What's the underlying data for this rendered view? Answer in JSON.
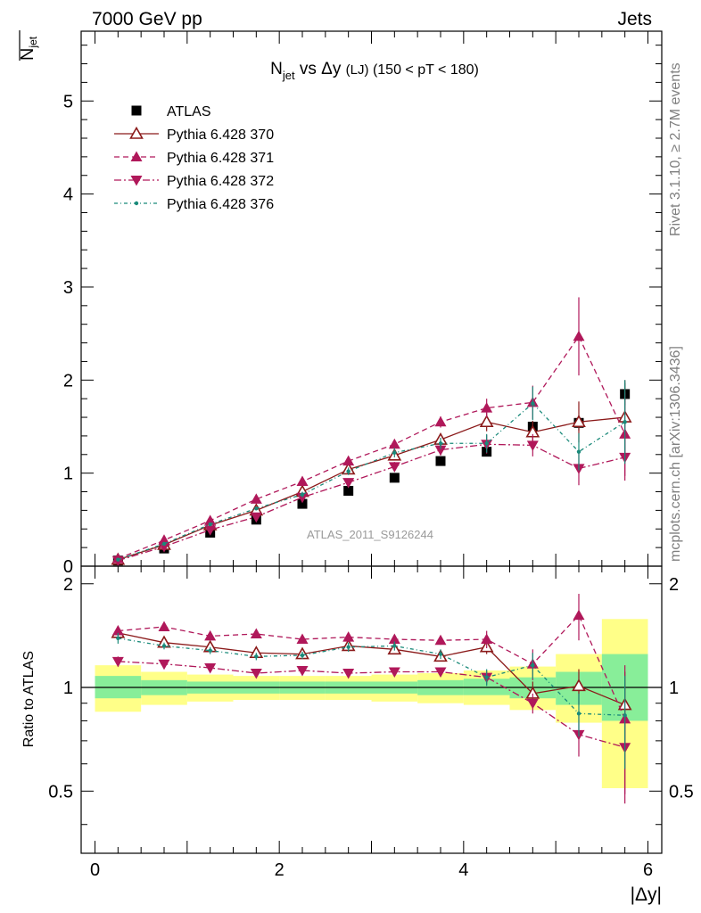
{
  "header": {
    "left": "7000 GeV pp",
    "right": "Jets"
  },
  "side_labels": {
    "rivet": "Rivet 3.1.10, ≥ 2.7M events",
    "mcplots": "mcplots.cern.ch [arXiv:1306.3436]"
  },
  "chart_data": [
    {
      "type": "scatter",
      "panel": "main",
      "title": {
        "main": "N",
        "sub": "jet",
        "mid": " vs Δy ",
        "tail_small": "(LJ)",
        "tail": " (150 < pT < 180)"
      },
      "ylabel": {
        "top": "N",
        "sub": "jet"
      },
      "watermark": "ATLAS_2011_S9126244",
      "xlim": [
        -0.15,
        6.15
      ],
      "ylim": [
        0,
        5.75
      ],
      "yticks": [
        {
          "v": 0,
          "label": "0"
        },
        {
          "v": 1,
          "label": "1"
        },
        {
          "v": 2,
          "label": "2"
        },
        {
          "v": 3,
          "label": "3"
        },
        {
          "v": 4,
          "label": "4"
        },
        {
          "v": 5,
          "label": "5"
        }
      ],
      "x": [
        0.25,
        0.75,
        1.25,
        1.75,
        2.25,
        2.75,
        3.25,
        3.75,
        4.25,
        4.75,
        5.25,
        5.75
      ],
      "legend_position": "top-left",
      "series": [
        {
          "name": "ATLAS",
          "color": "#000000",
          "marker": "square",
          "line": "none",
          "values": [
            0.06,
            0.19,
            0.36,
            0.5,
            0.67,
            0.81,
            0.95,
            1.13,
            1.23,
            1.5,
            1.54,
            1.85
          ],
          "err": [
            0.01,
            0.01,
            0.01,
            0.01,
            0.02,
            0.02,
            0.02,
            0.03,
            0.04,
            0.06,
            0.08,
            0.12
          ]
        },
        {
          "name": "Pythia 6.428 370",
          "color": "#8b1a1a",
          "marker": "triangle-up-open",
          "line": "solid",
          "values": [
            0.07,
            0.23,
            0.44,
            0.6,
            0.8,
            1.04,
            1.19,
            1.36,
            1.55,
            1.44,
            1.55,
            1.6
          ],
          "err": [
            0.01,
            0.01,
            0.02,
            0.02,
            0.03,
            0.04,
            0.05,
            0.06,
            0.1,
            0.12,
            0.22,
            0.4
          ]
        },
        {
          "name": "Pythia 6.428 371",
          "color": "#b0185a",
          "marker": "triangle-up",
          "line": "dashed",
          "values": [
            0.08,
            0.28,
            0.49,
            0.72,
            0.91,
            1.13,
            1.31,
            1.55,
            1.7,
            1.76,
            2.47,
            1.42
          ],
          "err": [
            0.01,
            0.01,
            0.02,
            0.02,
            0.03,
            0.04,
            0.05,
            0.06,
            0.1,
            0.18,
            0.42,
            0.45
          ]
        },
        {
          "name": "Pythia 6.428 372",
          "color": "#b0185a",
          "marker": "triangle-down",
          "line": "dashdot",
          "values": [
            0.06,
            0.21,
            0.39,
            0.53,
            0.74,
            0.9,
            1.07,
            1.25,
            1.31,
            1.3,
            1.05,
            1.17
          ],
          "err": [
            0.01,
            0.01,
            0.02,
            0.02,
            0.03,
            0.04,
            0.05,
            0.06,
            0.1,
            0.12,
            0.18,
            0.25
          ]
        },
        {
          "name": "Pythia 6.428 376",
          "color": "#1a8a7a",
          "marker": "dot",
          "line": "dashdot-fine",
          "values": [
            0.07,
            0.24,
            0.45,
            0.62,
            0.77,
            1.02,
            1.22,
            1.32,
            1.32,
            1.75,
            1.23,
            1.55
          ],
          "err": [
            0.01,
            0.01,
            0.02,
            0.02,
            0.03,
            0.04,
            0.05,
            0.06,
            0.1,
            0.18,
            0.2,
            0.45
          ]
        }
      ]
    },
    {
      "type": "scatter",
      "panel": "ratio",
      "xlabel": "|Δy|",
      "ylabel": "Ratio to ATLAS",
      "xlim": [
        -0.15,
        6.15
      ],
      "ylim": [
        0.33,
        2.25
      ],
      "yscale": "log",
      "yticks": [
        {
          "v": 0.5,
          "label": "0.5"
        },
        {
          "v": 1,
          "label": "1"
        },
        {
          "v": 2,
          "label": "2"
        }
      ],
      "xticks": [
        {
          "v": 0,
          "label": "0"
        },
        {
          "v": 2,
          "label": "2"
        },
        {
          "v": 4,
          "label": "4"
        },
        {
          "v": 6,
          "label": "6"
        }
      ],
      "bands": {
        "colors": {
          "yellow": "#ffff88",
          "green": "#88ee99"
        },
        "edges": [
          0,
          0.5,
          1,
          1.5,
          2,
          2.5,
          3,
          3.5,
          4,
          4.5,
          5,
          5.5,
          6
        ],
        "yellow": [
          [
            0.85,
            1.16
          ],
          [
            0.89,
            1.11
          ],
          [
            0.91,
            1.09
          ],
          [
            0.92,
            1.08
          ],
          [
            0.92,
            1.08
          ],
          [
            0.92,
            1.08
          ],
          [
            0.91,
            1.09
          ],
          [
            0.9,
            1.1
          ],
          [
            0.89,
            1.12
          ],
          [
            0.86,
            1.15
          ],
          [
            0.79,
            1.25
          ],
          [
            0.51,
            1.58
          ]
        ],
        "green": [
          [
            0.93,
            1.08
          ],
          [
            0.95,
            1.05
          ],
          [
            0.96,
            1.04
          ],
          [
            0.96,
            1.04
          ],
          [
            0.96,
            1.04
          ],
          [
            0.96,
            1.04
          ],
          [
            0.96,
            1.04
          ],
          [
            0.95,
            1.05
          ],
          [
            0.95,
            1.06
          ],
          [
            0.93,
            1.07
          ],
          [
            0.89,
            1.11
          ],
          [
            0.8,
            1.25
          ]
        ]
      },
      "x": [
        0.25,
        0.75,
        1.25,
        1.75,
        2.25,
        2.75,
        3.25,
        3.75,
        4.25,
        4.75,
        5.25,
        5.75
      ],
      "series": [
        {
          "name": "Pythia 6.428 370",
          "values": [
            1.44,
            1.35,
            1.31,
            1.26,
            1.25,
            1.32,
            1.29,
            1.23,
            1.31,
            0.96,
            1.01,
            0.89
          ],
          "err": [
            0.05,
            0.03,
            0.03,
            0.03,
            0.03,
            0.04,
            0.04,
            0.04,
            0.06,
            0.08,
            0.12,
            0.22
          ]
        },
        {
          "name": "Pythia 6.428 371",
          "values": [
            1.46,
            1.5,
            1.41,
            1.43,
            1.38,
            1.4,
            1.38,
            1.37,
            1.38,
            1.17,
            1.62,
            0.81
          ],
          "err": [
            0.05,
            0.03,
            0.03,
            0.03,
            0.03,
            0.04,
            0.04,
            0.04,
            0.08,
            0.12,
            0.25,
            0.35
          ]
        },
        {
          "name": "Pythia 6.428 372",
          "values": [
            1.19,
            1.17,
            1.14,
            1.1,
            1.12,
            1.1,
            1.11,
            1.11,
            1.07,
            0.9,
            0.73,
            0.67
          ],
          "err": [
            0.04,
            0.02,
            0.02,
            0.02,
            0.02,
            0.03,
            0.03,
            0.03,
            0.05,
            0.06,
            0.1,
            0.18
          ]
        },
        {
          "name": "Pythia 6.428 376",
          "values": [
            1.39,
            1.32,
            1.28,
            1.23,
            1.24,
            1.31,
            1.32,
            1.25,
            1.07,
            1.16,
            0.84,
            0.83
          ],
          "err": [
            0.05,
            0.03,
            0.03,
            0.03,
            0.03,
            0.04,
            0.04,
            0.04,
            0.06,
            0.1,
            0.12,
            0.25
          ]
        }
      ]
    }
  ]
}
